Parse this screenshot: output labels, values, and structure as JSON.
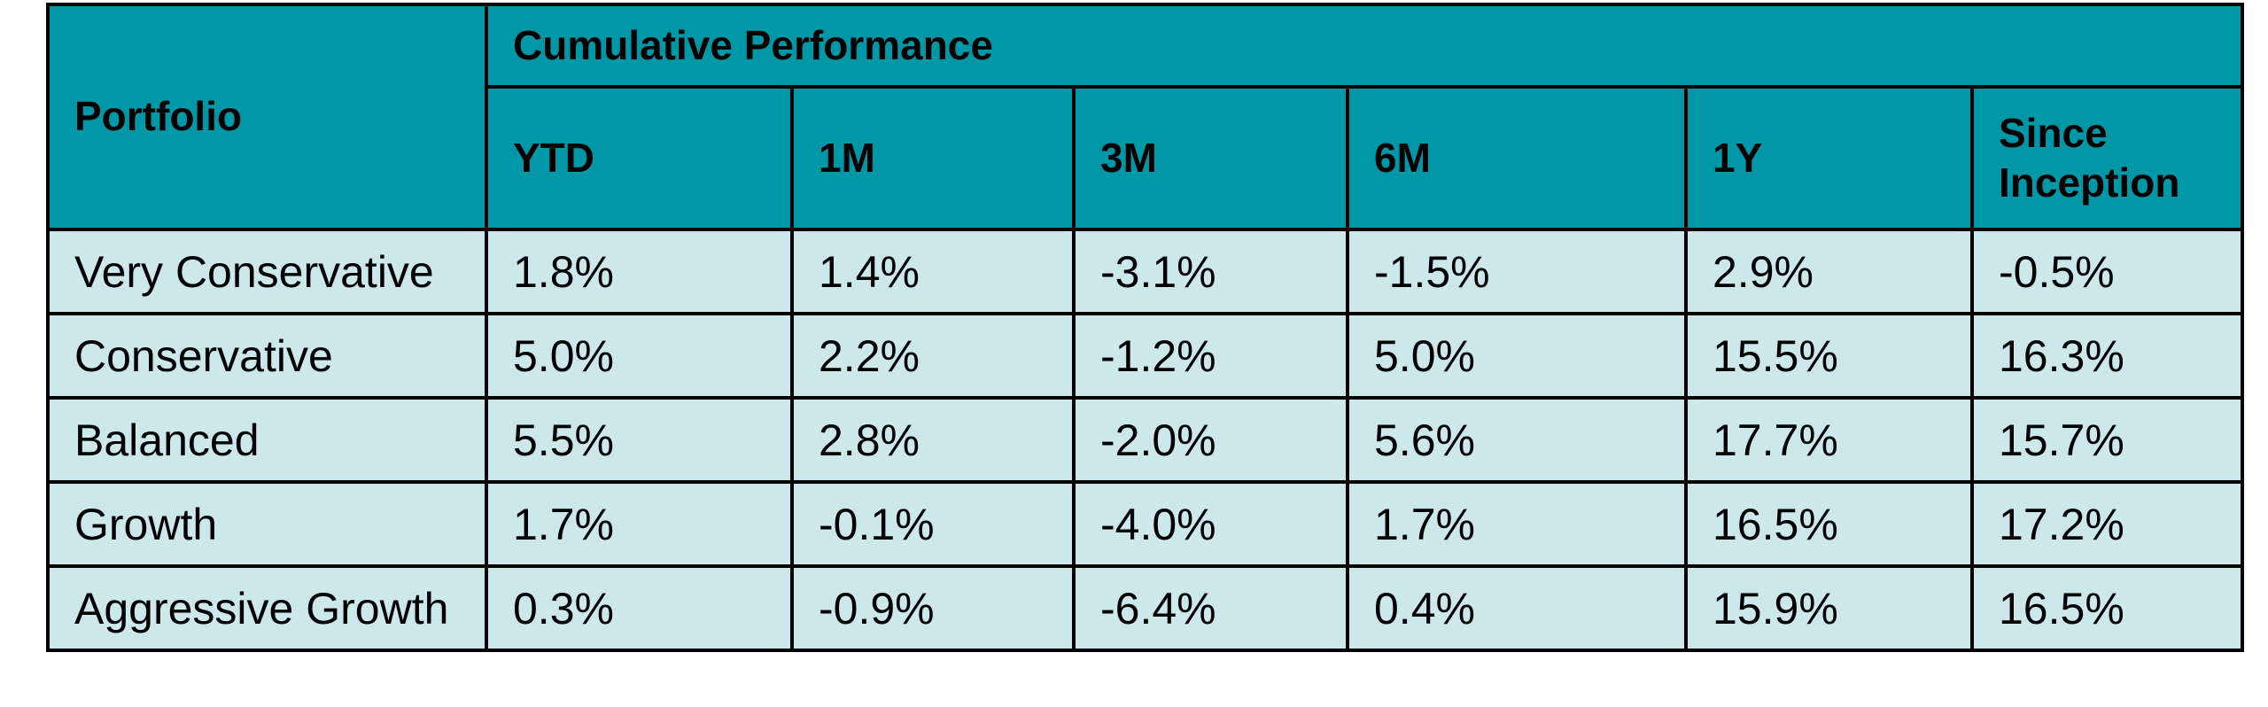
{
  "header": {
    "corner": "Portfolio",
    "title": "Cumulative Performance",
    "columns": [
      "YTD",
      "1M",
      "3M",
      "6M",
      "1Y",
      "Since Inception"
    ]
  },
  "table": {
    "rows": [
      {
        "name": "Very Conservative",
        "cells": [
          "1.8%",
          "1.4%",
          "-3.1%",
          "-1.5%",
          "2.9%",
          "-0.5%"
        ]
      },
      {
        "name": "Conservative",
        "cells": [
          "5.0%",
          "2.2%",
          "-1.2%",
          "5.0%",
          "15.5%",
          "16.3%"
        ]
      },
      {
        "name": "Balanced",
        "cells": [
          "5.5%",
          "2.8%",
          "-2.0%",
          "5.6%",
          "17.7%",
          "15.7%"
        ]
      },
      {
        "name": "Growth",
        "cells": [
          "1.7%",
          "-0.1%",
          "-4.0%",
          "1.7%",
          "16.5%",
          "17.2%"
        ]
      },
      {
        "name": "Aggressive Growth",
        "cells": [
          "0.3%",
          "-0.9%",
          "-6.4%",
          "0.4%",
          "15.9%",
          "16.5%"
        ]
      }
    ]
  }
}
